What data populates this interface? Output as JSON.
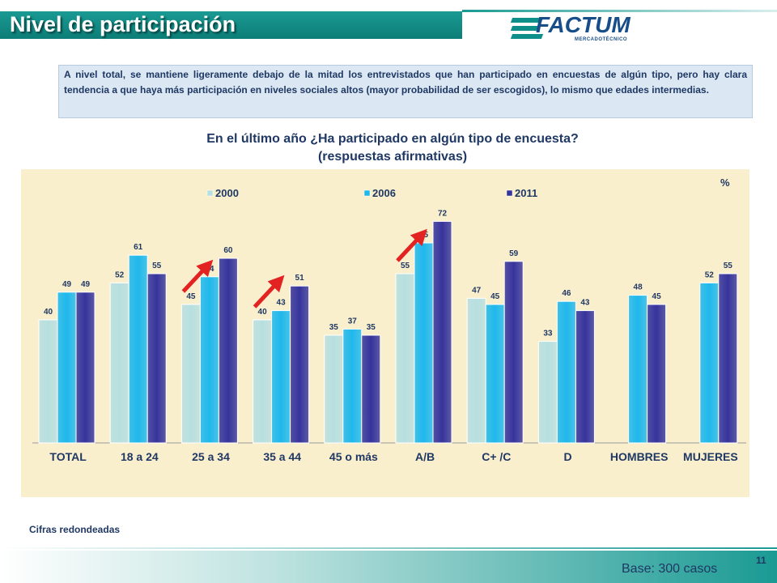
{
  "header": {
    "title": "Nivel de participación"
  },
  "logo": {
    "name": "FACTUM",
    "tagline": "MERCADOTÉCNICO"
  },
  "note": {
    "text": "A nivel total, se mantiene ligeramente debajo de la mitad los entrevistados que han participado en encuestas de algún tipo, pero hay clara tendencia a que haya más participación en niveles sociales altos (mayor probabilidad de ser escogidos), lo mismo que edades intermedias."
  },
  "chart_title": {
    "line1": "En el último año ¿Ha participado en algún tipo de encuesta?",
    "line2": "(respuestas afirmativas)"
  },
  "chart_data": {
    "type": "bar",
    "unit": "%",
    "categories": [
      "TOTAL",
      "18 a 24",
      "25 a 34",
      "35 a 44",
      "45 o más",
      "A/B",
      "C+ /C",
      "D",
      "HOMBRES",
      "MUJERES"
    ],
    "series": [
      {
        "name": "2000",
        "color": "#b7dfe0",
        "values": [
          40,
          52,
          45,
          40,
          35,
          55,
          47,
          33,
          null,
          null
        ]
      },
      {
        "name": "2006",
        "color": "#1fb8ec",
        "values": [
          49,
          61,
          54,
          43,
          37,
          65,
          45,
          46,
          48,
          52
        ]
      },
      {
        "name": "2011",
        "color": "#36349c",
        "values": [
          49,
          55,
          60,
          51,
          35,
          72,
          59,
          43,
          45,
          55
        ]
      }
    ],
    "trend_arrows_on": [
      "25 a 34",
      "35 a 44",
      "A/B"
    ],
    "arrow_color": "#e32222",
    "legend_position": "top",
    "ylim": [
      0,
      80
    ],
    "grid": false
  },
  "footer": {
    "note": "Cifras redondeadas",
    "base": "Base: 300 casos",
    "page": "11"
  }
}
